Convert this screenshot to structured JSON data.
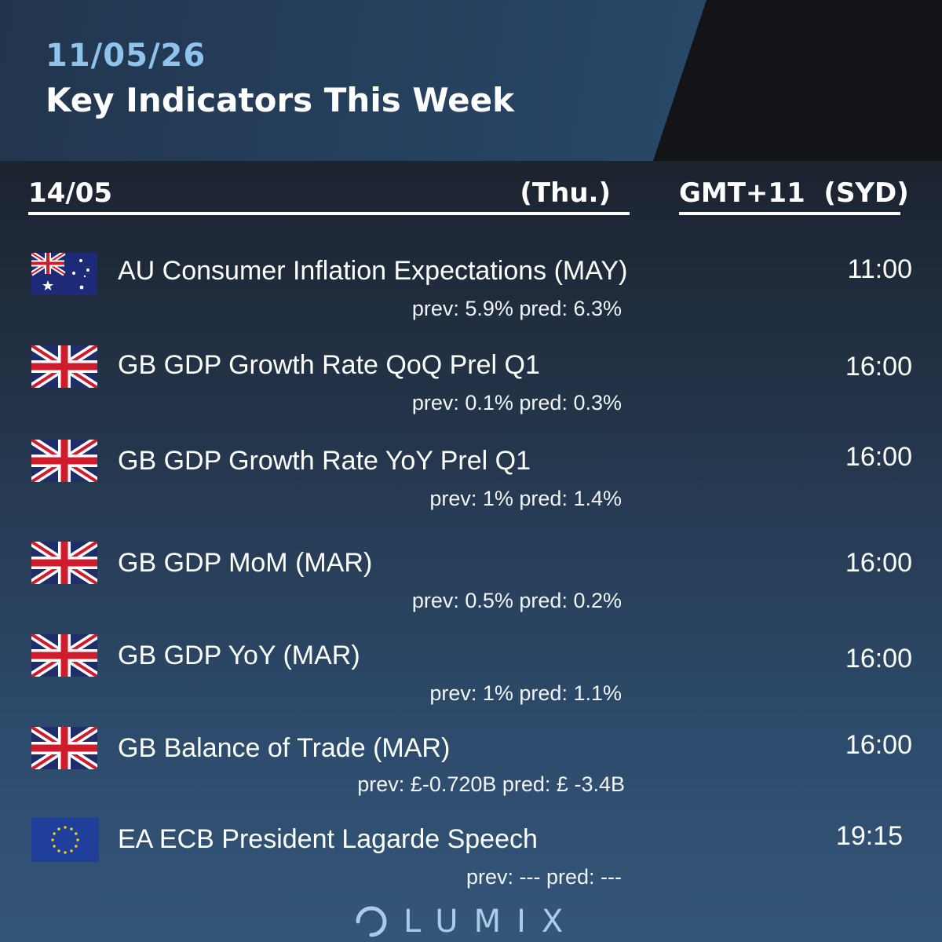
{
  "header": {
    "date": "11/05/26",
    "title": "Key Indicators This Week"
  },
  "subheader": {
    "day_date": "14/05",
    "day_name": "(Thu.)",
    "timezone": "GMT+11  (SYD)"
  },
  "events": [
    {
      "flag": "au-flag-icon",
      "name": "AU Consumer Inflation Expectations (MAY)",
      "prev_pred": "prev: 5.9% pred: 6.3%",
      "time": "11:00"
    },
    {
      "flag": "gb-flag-icon",
      "name": "GB GDP Growth Rate QoQ Prel Q1",
      "prev_pred": "prev: 0.1% pred: 0.3%",
      "time": "16:00"
    },
    {
      "flag": "gb-flag-icon",
      "name": "GB GDP Growth Rate YoY Prel Q1",
      "prev_pred": "prev: 1% pred: 1.4%",
      "time": "16:00"
    },
    {
      "flag": "gb-flag-icon",
      "name": "GB GDP MoM (MAR)",
      "prev_pred": "prev: 0.5% pred: 0.2%",
      "time": "16:00"
    },
    {
      "flag": "gb-flag-icon",
      "name": "GB GDP YoY (MAR)",
      "prev_pred": "prev: 1% pred: 1.1%",
      "time": "16:00"
    },
    {
      "flag": "gb-flag-icon",
      "name": "GB Balance of Trade (MAR)",
      "prev_pred": "prev: £-0.720B pred: £ -3.4B",
      "time": "16:00"
    },
    {
      "flag": "eu-flag-icon",
      "name": "EA ECB President Lagarde Speech",
      "prev_pred": "prev: --- pred: ---",
      "time": "19:15"
    }
  ],
  "brand": {
    "name": "LUMIX",
    "icon": "lumix-logo-icon"
  },
  "colors": {
    "accent_date": "#8fc3ee",
    "header_panel": "#25405d",
    "brand": "#a9cde9"
  }
}
